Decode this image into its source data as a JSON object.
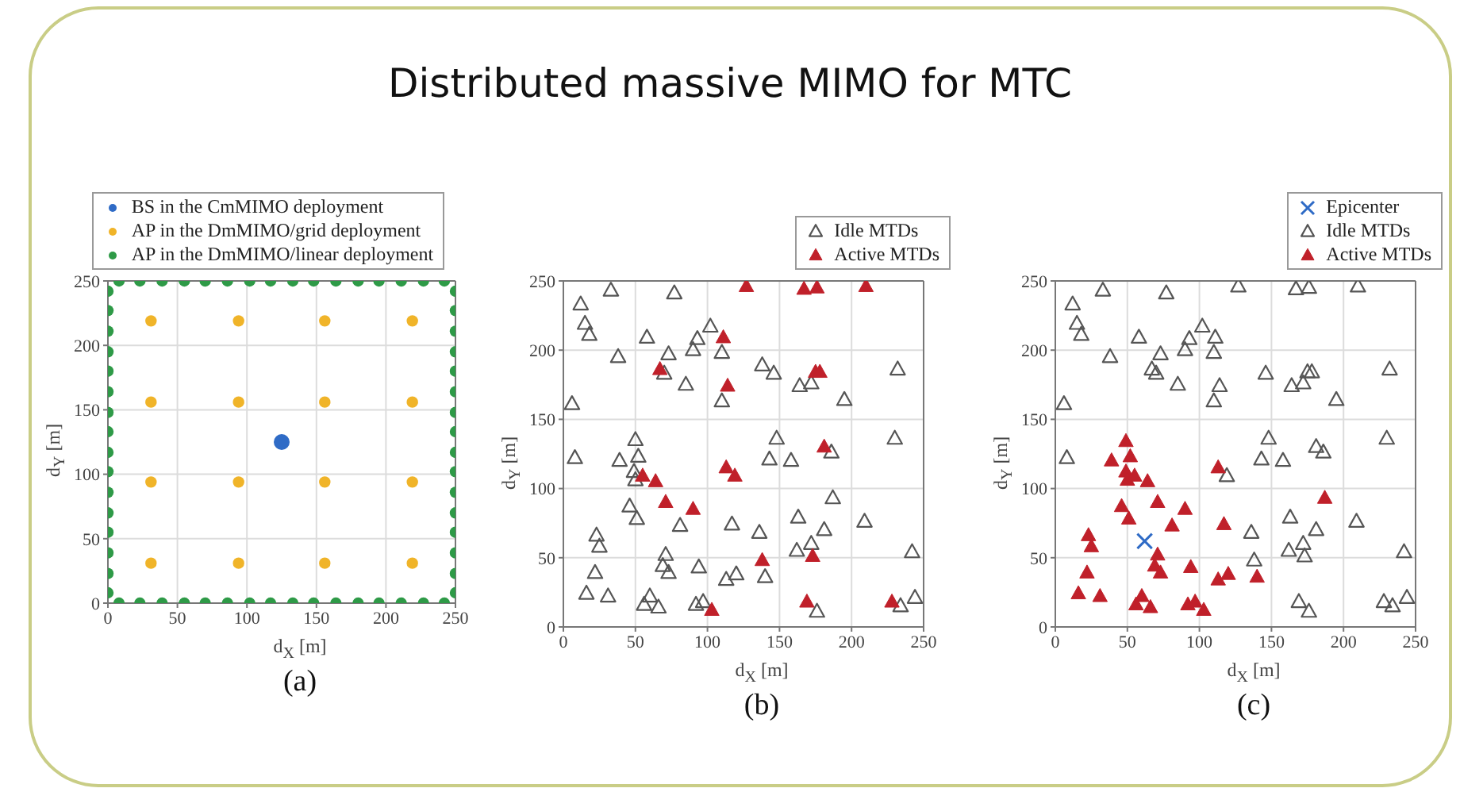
{
  "chart_data": [
    {
      "type": "scatter",
      "xlabel": "d$_{X}$ [m]",
      "ylabel": "d$_{Y}$ [m]",
      "annotations": [
        "(a)"
      ],
      "xlim": [
        0,
        250
      ],
      "ylim": [
        0,
        250
      ],
      "xticks": [
        0,
        50,
        100,
        150,
        200,
        250
      ],
      "yticks": [
        0,
        50,
        100,
        150,
        200,
        250
      ],
      "grid": true,
      "legend": "top",
      "series": [
        {
          "name": "BS in the CmMIMO deployment",
          "color": "#2f6bc6",
          "marker": "circle",
          "x": [
            125
          ],
          "values": [
            125
          ]
        },
        {
          "name": "AP in the DmMIMO/grid deployment",
          "color": "#f0b429",
          "marker": "circle",
          "x": [
            31,
            94,
            156,
            219,
            31,
            94,
            156,
            219,
            31,
            94,
            156,
            219,
            31,
            94,
            156,
            219
          ],
          "values": [
            31,
            31,
            31,
            31,
            94,
            94,
            94,
            94,
            156,
            156,
            156,
            156,
            219,
            219,
            219,
            219
          ]
        },
        {
          "name": "AP in the DmMIMO/linear deployment",
          "color": "#2e9a47",
          "marker": "circle",
          "x": [
            8,
            23,
            39,
            55,
            70,
            86,
            102,
            117,
            133,
            148,
            164,
            180,
            195,
            211,
            227,
            242,
            8,
            23,
            39,
            55,
            70,
            86,
            102,
            117,
            133,
            148,
            164,
            180,
            195,
            211,
            227,
            242,
            0,
            0,
            0,
            0,
            0,
            0,
            0,
            0,
            0,
            0,
            0,
            0,
            0,
            0,
            0,
            0,
            250,
            250,
            250,
            250,
            250,
            250,
            250,
            250,
            250,
            250,
            250,
            250,
            250,
            250,
            250,
            250
          ],
          "values": [
            250,
            250,
            250,
            250,
            250,
            250,
            250,
            250,
            250,
            250,
            250,
            250,
            250,
            250,
            250,
            250,
            0,
            0,
            0,
            0,
            0,
            0,
            0,
            0,
            0,
            0,
            0,
            0,
            0,
            0,
            0,
            0,
            8,
            23,
            39,
            55,
            70,
            86,
            102,
            117,
            133,
            148,
            164,
            180,
            195,
            211,
            227,
            242,
            8,
            23,
            39,
            55,
            70,
            86,
            102,
            117,
            133,
            148,
            164,
            180,
            195,
            211,
            227,
            242
          ]
        }
      ]
    },
    {
      "type": "scatter",
      "xlabel": "d$_{X}$ [m]",
      "ylabel": "d$_{Y}$ [m]",
      "title": "Distributed massive MIMO for MTC",
      "annotations": [
        "(b)"
      ],
      "xlim": [
        0,
        250
      ],
      "ylim": [
        0,
        250
      ],
      "xticks": [
        0,
        50,
        100,
        150,
        200,
        250
      ],
      "yticks": [
        0,
        50,
        100,
        150,
        200,
        250
      ],
      "grid": true,
      "legend": "top right",
      "series": [
        {
          "name": "Idle MTDs",
          "color": "#555555",
          "marker": "triangle",
          "x": [
            33,
            77,
            12,
            15,
            18,
            102,
            58,
            93,
            90,
            110,
            73,
            38,
            70,
            138,
            146,
            85,
            164,
            172,
            232,
            195,
            110,
            6,
            50,
            148,
            230,
            8,
            39,
            52,
            143,
            158,
            186,
            49,
            50,
            46,
            51,
            187,
            81,
            117,
            136,
            163,
            181,
            209,
            23,
            25,
            71,
            69,
            73,
            94,
            162,
            172,
            242,
            22,
            16,
            31,
            60,
            56,
            66,
            92,
            97,
            113,
            120,
            140,
            176,
            234,
            244
          ],
          "values": [
            243,
            241,
            233,
            219,
            211,
            217,
            209,
            208,
            200,
            198,
            197,
            195,
            183,
            189,
            183,
            175,
            174,
            176,
            186,
            164,
            163,
            161,
            135,
            136,
            136,
            122,
            120,
            123,
            121,
            120,
            126,
            112,
            106,
            87,
            78,
            93,
            73,
            74,
            68,
            79,
            70,
            76,
            66,
            58,
            52,
            44,
            39,
            43,
            55,
            60,
            54,
            39,
            24,
            22,
            22,
            16,
            14,
            16,
            18,
            34,
            38,
            36,
            11,
            15,
            21
          ]
        },
        {
          "name": "Active MTDs",
          "color": "#c0202a",
          "marker": "triangle",
          "x": [
            127,
            167,
            176,
            210,
            111,
            67,
            114,
            175,
            178,
            181,
            55,
            64,
            71,
            90,
            113,
            119,
            138,
            173,
            169,
            228,
            103
          ],
          "values": [
            246,
            244,
            245,
            246,
            209,
            186,
            174,
            184,
            184,
            130,
            109,
            105,
            90,
            85,
            115,
            109,
            48,
            51,
            18,
            18,
            12
          ]
        }
      ]
    },
    {
      "type": "scatter",
      "xlabel": "d$_{X}$ [m]",
      "ylabel": "d$_{Y}$ [m]",
      "annotations": [
        "(c)"
      ],
      "xlim": [
        0,
        250
      ],
      "ylim": [
        0,
        250
      ],
      "xticks": [
        0,
        50,
        100,
        150,
        200,
        250
      ],
      "yticks": [
        0,
        50,
        100,
        150,
        200,
        250
      ],
      "grid": true,
      "legend": "top right",
      "series": [
        {
          "name": "Epicenter",
          "color": "#2f6bc6",
          "marker": "cross",
          "x": [
            62
          ],
          "values": [
            62
          ]
        },
        {
          "name": "Idle MTDs",
          "color": "#555555",
          "marker": "triangle",
          "x": [
            127,
            167,
            176,
            210,
            33,
            77,
            12,
            15,
            18,
            102,
            58,
            93,
            90,
            110,
            111,
            73,
            38,
            67,
            70,
            146,
            175,
            178,
            232,
            85,
            114,
            164,
            172,
            195,
            110,
            6,
            148,
            230,
            8,
            143,
            158,
            186,
            181,
            119,
            136,
            163,
            181,
            209,
            162,
            172,
            173,
            138,
            242,
            169,
            176,
            228,
            234,
            244
          ],
          "values": [
            246,
            244,
            245,
            246,
            243,
            241,
            233,
            219,
            211,
            217,
            209,
            208,
            200,
            198,
            209,
            197,
            195,
            186,
            183,
            183,
            184,
            184,
            186,
            175,
            174,
            174,
            176,
            164,
            163,
            161,
            136,
            136,
            122,
            121,
            120,
            126,
            130,
            109,
            68,
            79,
            70,
            76,
            55,
            60,
            51,
            48,
            54,
            18,
            11,
            18,
            15,
            21
          ]
        },
        {
          "name": "Active MTDs",
          "color": "#c0202a",
          "marker": "triangle",
          "x": [
            49,
            39,
            52,
            49,
            50,
            55,
            64,
            46,
            51,
            71,
            90,
            81,
            113,
            117,
            187,
            23,
            25,
            71,
            69,
            73,
            94,
            22,
            16,
            31,
            60,
            56,
            66,
            92,
            97,
            103,
            113,
            120,
            140
          ],
          "values": [
            134,
            120,
            123,
            112,
            106,
            109,
            105,
            87,
            78,
            90,
            85,
            73,
            115,
            74,
            93,
            66,
            58,
            52,
            44,
            39,
            43,
            39,
            24,
            22,
            22,
            16,
            14,
            16,
            18,
            12,
            34,
            38,
            36
          ]
        }
      ]
    }
  ]
}
